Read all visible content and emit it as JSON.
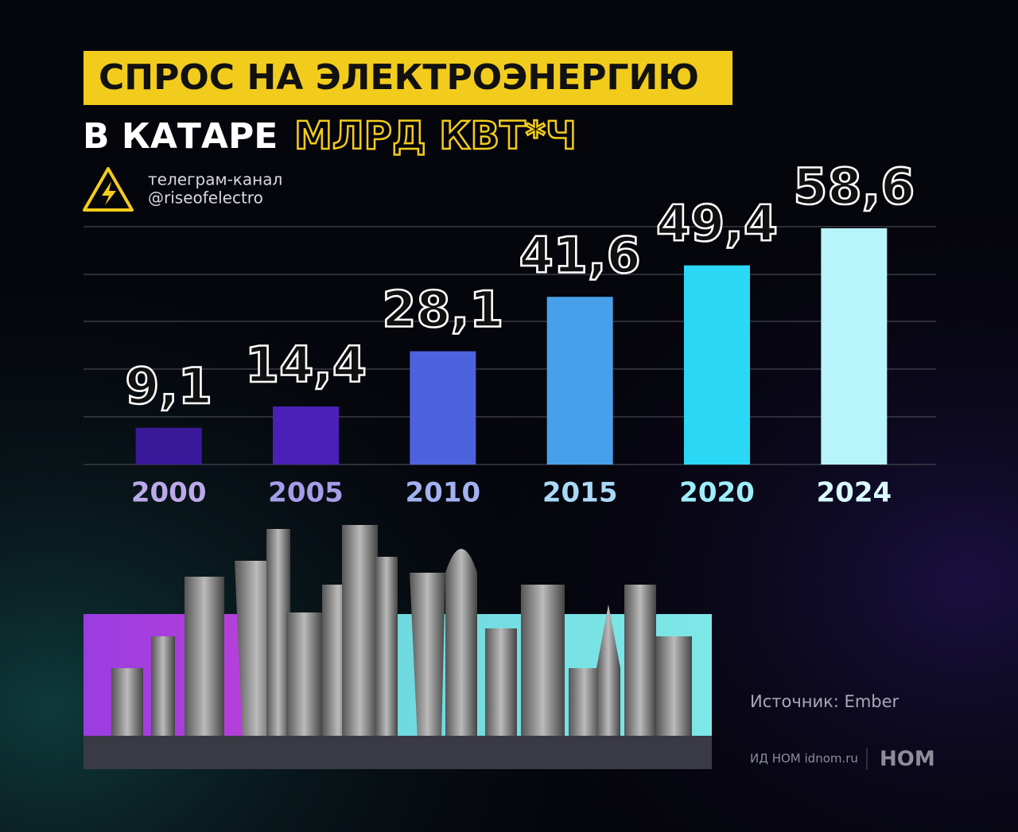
{
  "chart_data": {
    "type": "bar",
    "title": "СПРОС НА ЭЛЕКТРОЭНЕРГИЮ",
    "subtitle": "В КАТАРЕ",
    "unit": "МЛРД КВТ*Ч",
    "channel": [
      "телеграм-канал",
      "@riseofelectro"
    ],
    "source": "Источник: Ember",
    "publisher": "ИД НОМ idnom.ru",
    "logo": "НОМ",
    "categories": [
      "2000",
      "2005",
      "2010",
      "2015",
      "2020",
      "2024"
    ],
    "values": [
      9.1,
      14.4,
      28.1,
      41.6,
      49.4,
      58.6
    ],
    "value_labels": [
      "9,1",
      "14,4",
      "28,1",
      "41,6",
      "49,4",
      "58,6"
    ],
    "colors": [
      "#3a1a9a",
      "#4a20b8",
      "#4f62dd",
      "#48a0ea",
      "#2ad8f5",
      "#b8f4fb"
    ],
    "category_colors": [
      "#bba9e8",
      "#a79ce8",
      "#a2b2f0",
      "#a9d9f8",
      "#9eeefc",
      "#dafbff"
    ]
  }
}
